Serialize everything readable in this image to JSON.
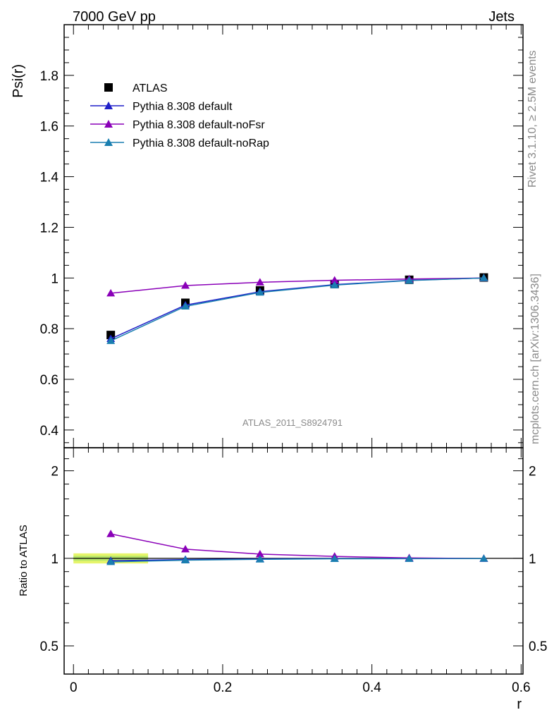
{
  "header": {
    "left": "7000 GeV pp",
    "right": "Jets"
  },
  "side_text": {
    "rivet": "Rivet 3.1.10, ≥ 2.5M events",
    "mcplots": "mcplots.cern.ch [arXiv:1306.3436]"
  },
  "analysis_label": "ATLAS_2011_S8924791",
  "chart_data": [
    {
      "type": "line",
      "ylabel": "Psi(r)",
      "ylim": [
        0.33,
        2.0
      ],
      "xlim": [
        -0.0125,
        0.6025
      ],
      "yticks": [
        0.4,
        0.6,
        0.8,
        1,
        1.2,
        1.4,
        1.6,
        1.8
      ],
      "ytick_labels": [
        "0.4",
        "0.6",
        "0.8",
        "1",
        "1.2",
        "1.4",
        "1.6",
        "1.8"
      ],
      "x": [
        0.05,
        0.15,
        0.25,
        0.35,
        0.45,
        0.55
      ],
      "legend_position": "top-left",
      "series": [
        {
          "name": "ATLAS",
          "marker": "square",
          "color": "#000000",
          "line": false,
          "values": [
            0.775,
            0.902,
            0.951,
            0.976,
            0.993,
            1.002
          ]
        },
        {
          "name": "Pythia 8.308 default",
          "marker": "triangle",
          "color": "#1f1fc8",
          "line": true,
          "values": [
            0.76,
            0.893,
            0.946,
            0.974,
            0.991,
            1.0
          ]
        },
        {
          "name": "Pythia 8.308 default-noFsr",
          "marker": "triangle",
          "color": "#8a00b8",
          "line": true,
          "values": [
            0.94,
            0.97,
            0.983,
            0.991,
            0.996,
            1.0
          ]
        },
        {
          "name": "Pythia 8.308 default-noRap",
          "marker": "triangle",
          "color": "#1a7fb0",
          "line": true,
          "values": [
            0.752,
            0.888,
            0.943,
            0.972,
            0.99,
            1.0
          ]
        }
      ]
    },
    {
      "type": "line",
      "ylabel": "Ratio to ATLAS",
      "xlabel": "r",
      "yscale": "log",
      "ylim": [
        0.4,
        2.4
      ],
      "yticks": [
        0.5,
        1,
        2
      ],
      "ytick_labels": [
        "0.5",
        "1",
        "2"
      ],
      "xticks": [
        0,
        0.2,
        0.4,
        0.6
      ],
      "xtick_labels": [
        "0",
        "0.2",
        "0.4",
        "0.6"
      ],
      "x": [
        0.05,
        0.15,
        0.25,
        0.35,
        0.45,
        0.55
      ],
      "band": {
        "x_range": [
          0,
          0.1
        ],
        "color": "#e6f56b",
        "outer": [
          0.96,
          1.04
        ],
        "inner": [
          0.98,
          1.02
        ],
        "inner_color": "#b8e86a"
      },
      "series": [
        {
          "name": "Pythia 8.308 default",
          "color": "#1f1fc8",
          "values": [
            0.981,
            0.99,
            0.995,
            0.998,
            0.998,
            0.998
          ]
        },
        {
          "name": "Pythia 8.308 default-noFsr",
          "color": "#8a00b8",
          "values": [
            1.213,
            1.075,
            1.034,
            1.015,
            1.003,
            0.998
          ]
        },
        {
          "name": "Pythia 8.308 default-noRap",
          "color": "#1a7fb0",
          "values": [
            0.972,
            0.985,
            0.992,
            0.996,
            0.997,
            0.998
          ]
        }
      ]
    }
  ]
}
